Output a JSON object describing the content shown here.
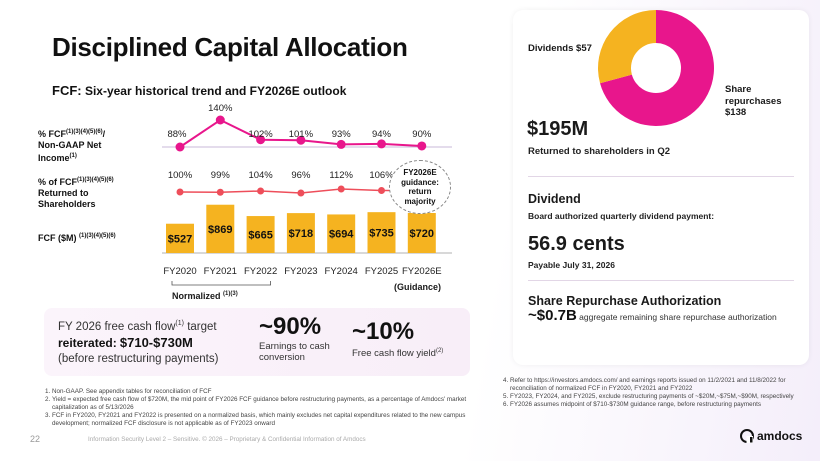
{
  "title": "Disciplined Capital Allocation",
  "fcf_heading": {
    "prefix": "FCF:",
    "rest": "Six-year historical trend and FY2026E outlook"
  },
  "row_labels": {
    "ni_main": "% FCF",
    "ni_sup": "(1)(3)(4)(5)(6)",
    "ni_tail": "/",
    "ni_line2": "Non-GAAP Net",
    "ni_line3": "Income",
    "ni_line3_sup": "(1)",
    "ret_main": "% of FCF",
    "ret_sup": "(1)(3)(4)(5)(6)",
    "ret_line2": "Returned to",
    "ret_line3": "Shareholders",
    "fcf_main": "FCF ($M)",
    "fcf_sup": "(1)(3)(4)(5)(6)"
  },
  "chart_data": {
    "type": "bar",
    "categories": [
      "FY2020",
      "FY2021",
      "FY2022",
      "FY2023",
      "FY2024",
      "FY2025",
      "FY2026E"
    ],
    "fcf_values": [
      527,
      869,
      665,
      718,
      694,
      735,
      720
    ],
    "fcf_labels": [
      "$527",
      "$869",
      "$665",
      "$718",
      "$694",
      "$735",
      "$720"
    ],
    "ni_pct": [
      88,
      140,
      102,
      101,
      93,
      94,
      90
    ],
    "ni_pct_labels": [
      "88%",
      "140%",
      "102%",
      "101%",
      "93%",
      "94%",
      "90%"
    ],
    "returned_pct": [
      100,
      99,
      104,
      96,
      112,
      106
    ],
    "returned_pct_labels": [
      "100%",
      "99%",
      "104%",
      "96%",
      "112%",
      "106%"
    ],
    "colors": {
      "bar": "#f5b320",
      "ni_line": "#e8168c",
      "returned_line": "#ee4e5a",
      "reference": "#c9b8d9"
    }
  },
  "guidance_bubble": "FY2026E guidance: return majority",
  "normalized_label": "Normalized",
  "normalized_sup": "(1)(3)",
  "guidance_note": "(Guidance)",
  "target": {
    "line1": "FY 2026 free cash flow",
    "line1_sup": "(1)",
    "line1_tail": "target",
    "reiterated": "reiterated:",
    "range": "$710-$730M",
    "line3": "(before restructuring payments)"
  },
  "stat1": {
    "value": "~90%",
    "label1": "Earnings to cash",
    "label2": "conversion"
  },
  "stat2": {
    "value": "~10%",
    "label": "Free cash flow yield",
    "label_sup": "(2)"
  },
  "footnotes": [
    "Non-GAAP. See appendix tables for reconciliation of FCF",
    "Yield = expected free cash flow of $720M, the mid point of FY2026 FCF guidance before restructuring payments, as a percentage of Amdocs' market capitalization as of 5/13/2026",
    "FCF in FY2020, FY2021 and FY2022 is presented on a normalized basis, which mainly excludes net capital expenditures related to the new campus development; normalized FCF disclosure is not applicable as of FY2023 onward"
  ],
  "right_notes": [
    "Refer to https://investors.amdocs.com/ and earnings reports issued on 11/2/2021 and 11/8/2022 for reconciliation of normalized FCF in FY2020, FY2021 and FY2022",
    "FY2023, FY2024, and FY2025, exclude restructuring payments of ~$20M,~$75M,~$90M, respectively",
    "FY2026 assumes midpoint of $710-$730M guidance range, before restructuring payments"
  ],
  "page_number": "22",
  "confidential": "Information Security Level 2 – Sensitive. © 2026 – Proprietary & Confidential Information of Amdocs",
  "logo_text": "amdocs",
  "returns": {
    "dividends_label": "Dividends $57",
    "share_label_1": "Share",
    "share_label_2": "repurchases",
    "share_label_3": "$138",
    "pie": {
      "dividends": 57,
      "share_repurchases": 138,
      "colors": {
        "dividends": "#f5b320",
        "share_repurchases": "#e8168c"
      }
    },
    "total": "$195M",
    "total_sub": "Returned to shareholders in Q2"
  },
  "dividend": {
    "heading": "Dividend",
    "sub": "Board authorized quarterly dividend payment:",
    "amount": "56.9 cents",
    "payable": "Payable July 31, 2026"
  },
  "repurchase": {
    "heading": "Share Repurchase Authorization",
    "amount": "~$0.7B",
    "desc": "aggregate remaining share repurchase authorization"
  }
}
